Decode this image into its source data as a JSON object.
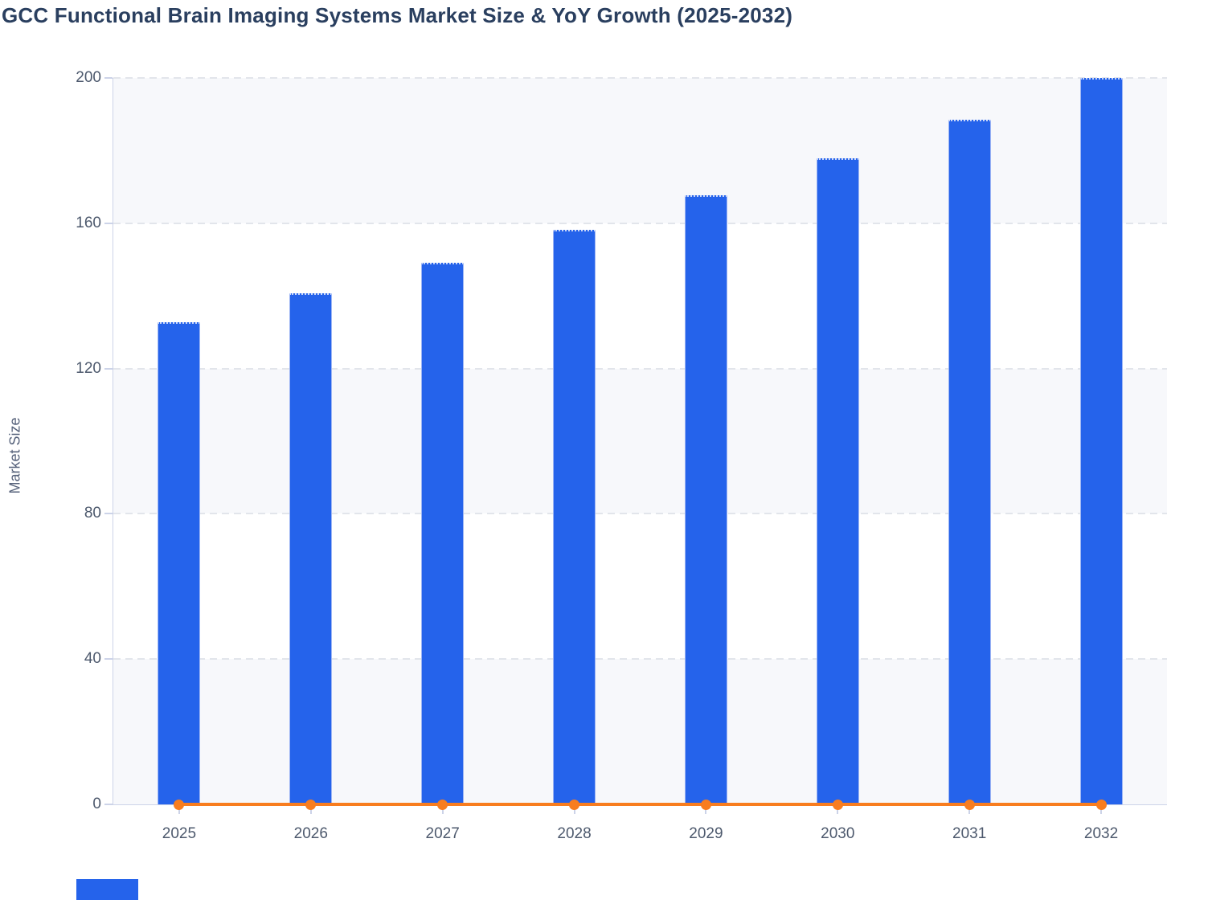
{
  "title": "GCC Functional Brain Imaging Systems Market Size & YoY Growth (2025-2032)",
  "colors": {
    "title_text": "#2a3f5f",
    "tick_text": "#4d596d",
    "axis_name_text": "#55617a",
    "bar_fill": "#2563eb",
    "bar_edge": "#9db5f4",
    "bar_top_dotted": "#cbd8f9",
    "line_orange": "#f87d1f",
    "band": "#f7f8fb",
    "grid": "#e2e5eb",
    "axis": "#ccd3e8",
    "background": "#ffffff"
  },
  "chart_data": {
    "type": "bar",
    "title": "GCC Functional Brain Imaging Systems Market Size & YoY Growth (2025-2032)",
    "categories": [
      "2025",
      "2026",
      "2027",
      "2028",
      "2029",
      "2030",
      "2031",
      "2032"
    ],
    "series": [
      {
        "name": "Market Size",
        "type": "bar",
        "color": "#2563eb",
        "values": [
          132.7,
          140.7,
          149.2,
          158.2,
          167.8,
          177.9,
          188.6,
          200
        ]
      },
      {
        "name": "YoY Growth",
        "type": "line",
        "color": "#f87d1f",
        "values": [
          0,
          0,
          0,
          0,
          0,
          0,
          0,
          0
        ],
        "note": "flat line with round markers drawn at 0 on the visible left axis"
      }
    ],
    "xlabel": "",
    "ylabel": "Market Size",
    "ylim": [
      0,
      200
    ],
    "yticks": [
      0,
      40,
      80,
      120,
      160,
      200
    ],
    "grid": "horizontal dashed gridlines at each y tick",
    "background_bands": "alternating light bands between gridlines (160-200, 80-120, 0-40 shaded)",
    "legend": "none"
  }
}
